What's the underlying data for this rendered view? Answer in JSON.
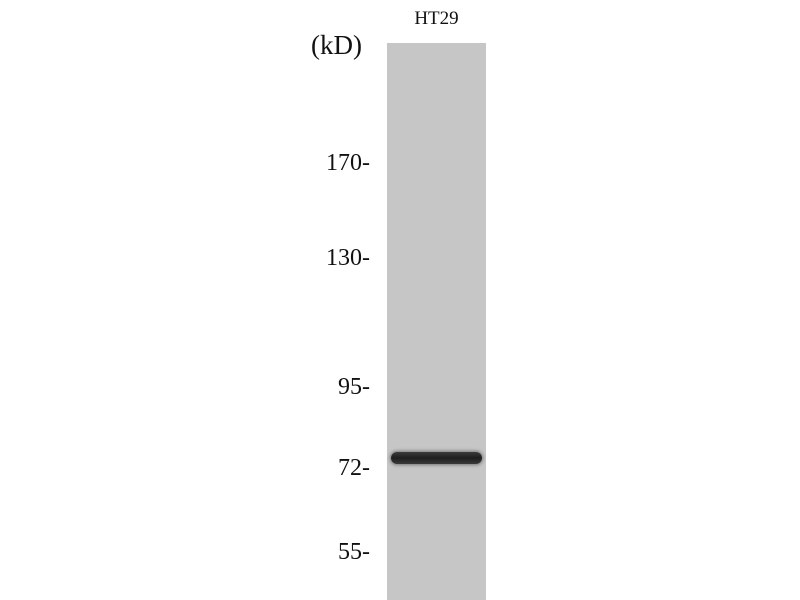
{
  "sample_label": "HT29",
  "unit_label": "(kD)",
  "markers": [
    "170-",
    "130-",
    "95-",
    "72-",
    "55-"
  ],
  "colors": {
    "lane": "#c6c6c6",
    "band": "#222222"
  }
}
